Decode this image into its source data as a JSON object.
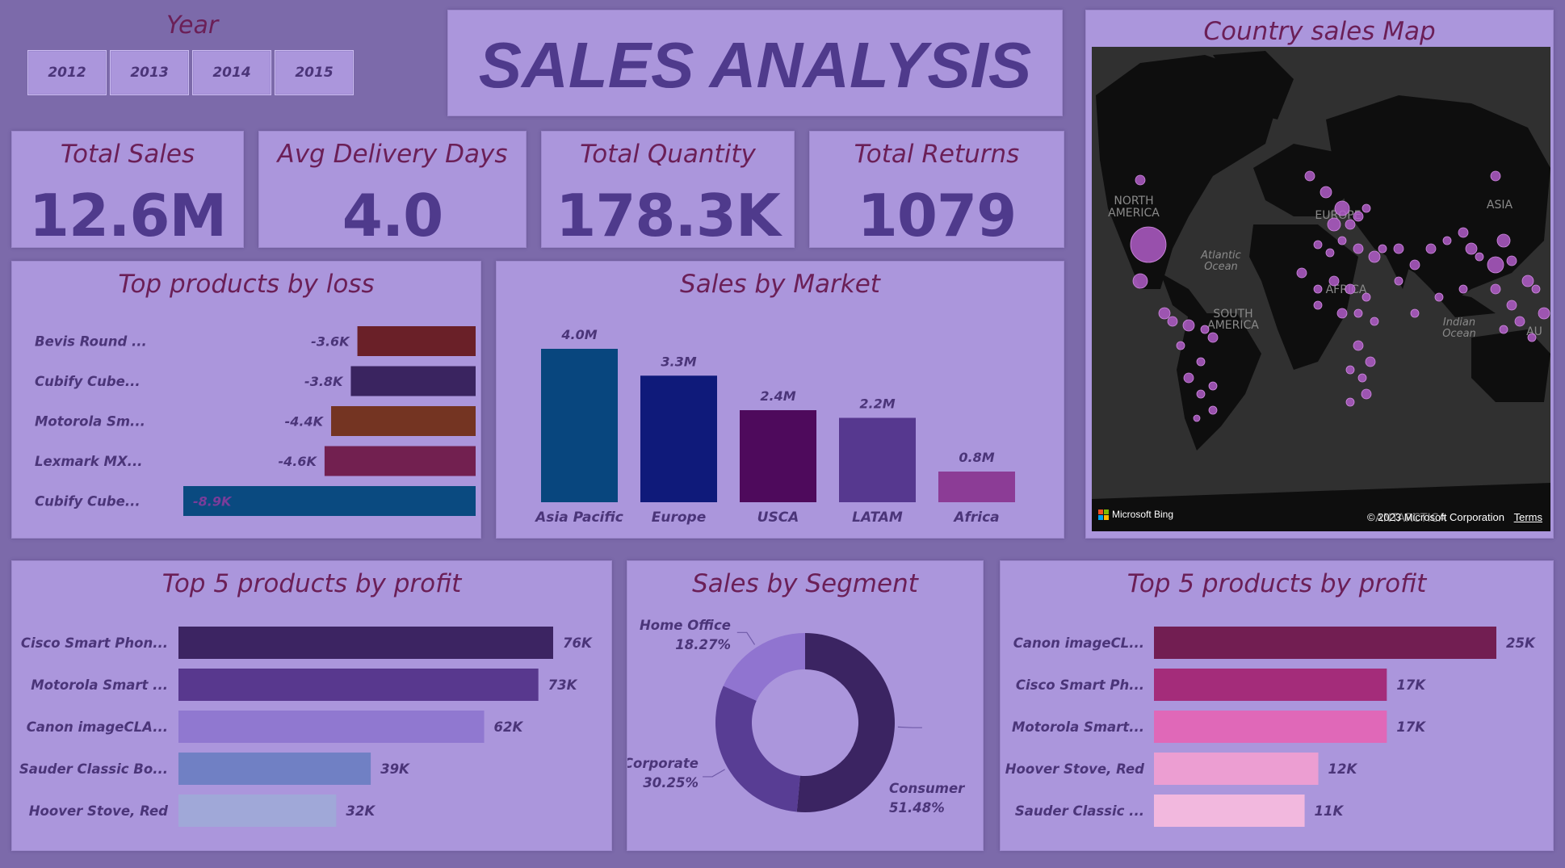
{
  "page_title": "SALES ANALYSIS",
  "year_slicer": {
    "label": "Year",
    "options": [
      "2012",
      "2013",
      "2014",
      "2015"
    ]
  },
  "kpis": [
    {
      "title": "Total Sales",
      "value": "12.6M"
    },
    {
      "title": "Avg Delivery Days",
      "value": "4.0"
    },
    {
      "title": "Total Quantity",
      "value": "178.3K"
    },
    {
      "title": "Total Returns",
      "value": "1079"
    }
  ],
  "map": {
    "title": "Country sales Map",
    "labels": [
      "NORTH",
      "AMERICA",
      "Atlantic",
      "Ocean",
      "EUROPE",
      "ASIA",
      "AFRICA",
      "SOUTH",
      "AMERICA",
      "Indian",
      "Ocean",
      "AU",
      "ANTARCTICA"
    ],
    "brand": "Microsoft Bing",
    "copyright": "© 2023 Microsoft Corporation",
    "terms": "Terms",
    "bubble_color": "#b05cc8"
  },
  "chart_data": [
    {
      "id": "loss",
      "type": "bar",
      "orientation": "horizontal",
      "title": "Top products by loss",
      "categories": [
        "Bevis Round ...",
        "Cubify Cube...",
        "Motorola Sm...",
        "Lexmark MX...",
        "Cubify Cube..."
      ],
      "values": [
        -3.6,
        -3.8,
        -4.4,
        -4.6,
        -8.9
      ],
      "labels": [
        "-3.6K",
        "-3.8K",
        "-4.4K",
        "-4.6K",
        "-8.9K"
      ],
      "colors": [
        "#6a2028",
        "#3a2460",
        "#743422",
        "#722050",
        "#0a4a80"
      ],
      "unit": "K"
    },
    {
      "id": "market",
      "type": "bar",
      "orientation": "vertical",
      "title": "Sales by Market",
      "categories": [
        "Asia Pacific",
        "Europe",
        "USCA",
        "LATAM",
        "Africa"
      ],
      "values": [
        4.0,
        3.3,
        2.4,
        2.2,
        0.8
      ],
      "labels": [
        "4.0M",
        "3.3M",
        "2.4M",
        "2.2M",
        "0.8M"
      ],
      "colors": [
        "#08467e",
        "#0f1a7a",
        "#4e0a5c",
        "#56388f",
        "#8c3c96"
      ],
      "unit": "M"
    },
    {
      "id": "profit_left",
      "type": "bar",
      "orientation": "horizontal",
      "title": "Top 5 products by profit",
      "categories": [
        "Cisco Smart Phon...",
        "Motorola Smart ...",
        "Canon imageCLA...",
        "Sauder Classic Bo...",
        "Hoover Stove, Red"
      ],
      "values": [
        76,
        73,
        62,
        39,
        32
      ],
      "labels": [
        "76K",
        "73K",
        "62K",
        "39K",
        "32K"
      ],
      "colors": [
        "#3c2462",
        "#58388e",
        "#9078d0",
        "#7080c4",
        "#a0a8d8"
      ],
      "unit": "K"
    },
    {
      "id": "segment",
      "type": "pie",
      "title": "Sales by Segment",
      "categories": [
        "Consumer",
        "Corporate",
        "Home Office"
      ],
      "values": [
        51.48,
        30.25,
        18.27
      ],
      "labels": [
        "51.48%",
        "30.25%",
        "18.27%"
      ],
      "colors": [
        "#3b2462",
        "#583d94",
        "#9074d0"
      ]
    },
    {
      "id": "profit_right",
      "type": "bar",
      "orientation": "horizontal",
      "title": "Top 5 products by profit",
      "categories": [
        "Canon imageCL...",
        "Cisco Smart Ph...",
        "Motorola Smart...",
        "Hoover Stove, Red",
        "Sauder Classic ..."
      ],
      "values": [
        25,
        17,
        17,
        12,
        11
      ],
      "labels": [
        "25K",
        "17K",
        "17K",
        "12K",
        "11K"
      ],
      "colors": [
        "#721e52",
        "#a42c7a",
        "#e068b8",
        "#ec9ed2",
        "#f2b8de"
      ],
      "unit": "K"
    }
  ]
}
